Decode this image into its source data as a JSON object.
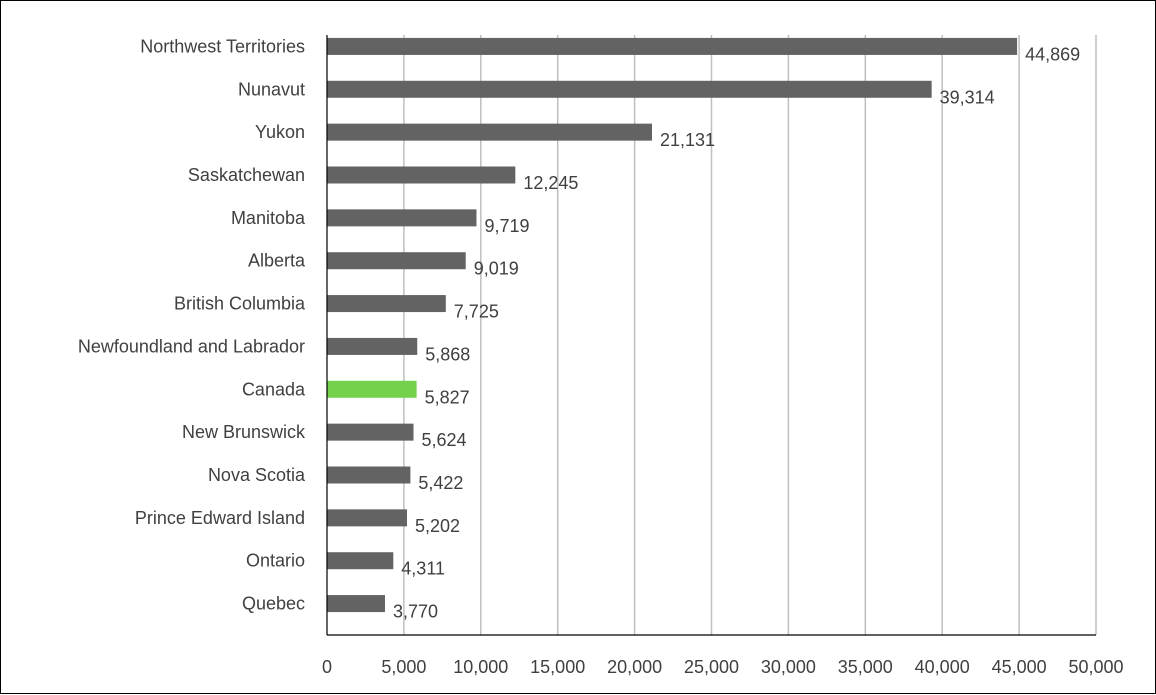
{
  "chart_data": {
    "type": "bar",
    "orientation": "horizontal",
    "title": "",
    "xlabel": "",
    "ylabel": "",
    "xlim": [
      0,
      50000
    ],
    "x_ticks": [
      0,
      5000,
      10000,
      15000,
      20000,
      25000,
      30000,
      35000,
      40000,
      45000,
      50000
    ],
    "x_tick_labels": [
      "0",
      "5,000",
      "10,000",
      "15,000",
      "20,000",
      "25,000",
      "30,000",
      "35,000",
      "40,000",
      "45,000",
      "50,000"
    ],
    "grid": "vertical",
    "legend": "none",
    "bar_color": "#636363",
    "highlight_color": "#74D14C",
    "grid_color": "#BFBFBF",
    "categories": [
      "Northwest Territories",
      "Nunavut",
      "Yukon",
      "Saskatchewan",
      "Manitoba",
      "Alberta",
      "British Columbia",
      "Newfoundland and Labrador",
      "Canada",
      "New Brunswick",
      "Nova Scotia",
      "Prince Edward Island",
      "Ontario",
      "Quebec"
    ],
    "values": [
      44869,
      39314,
      21131,
      12245,
      9719,
      9019,
      7725,
      5868,
      5827,
      5624,
      5422,
      5202,
      4311,
      3770
    ],
    "value_labels": [
      "44,869",
      "39,314",
      "21,131",
      "12,245",
      "9,719",
      "9,019",
      "7,725",
      "5,868",
      "5,827",
      "5,624",
      "5,422",
      "5,202",
      "4,311",
      "3,770"
    ],
    "highlighted": [
      "Canada"
    ]
  }
}
